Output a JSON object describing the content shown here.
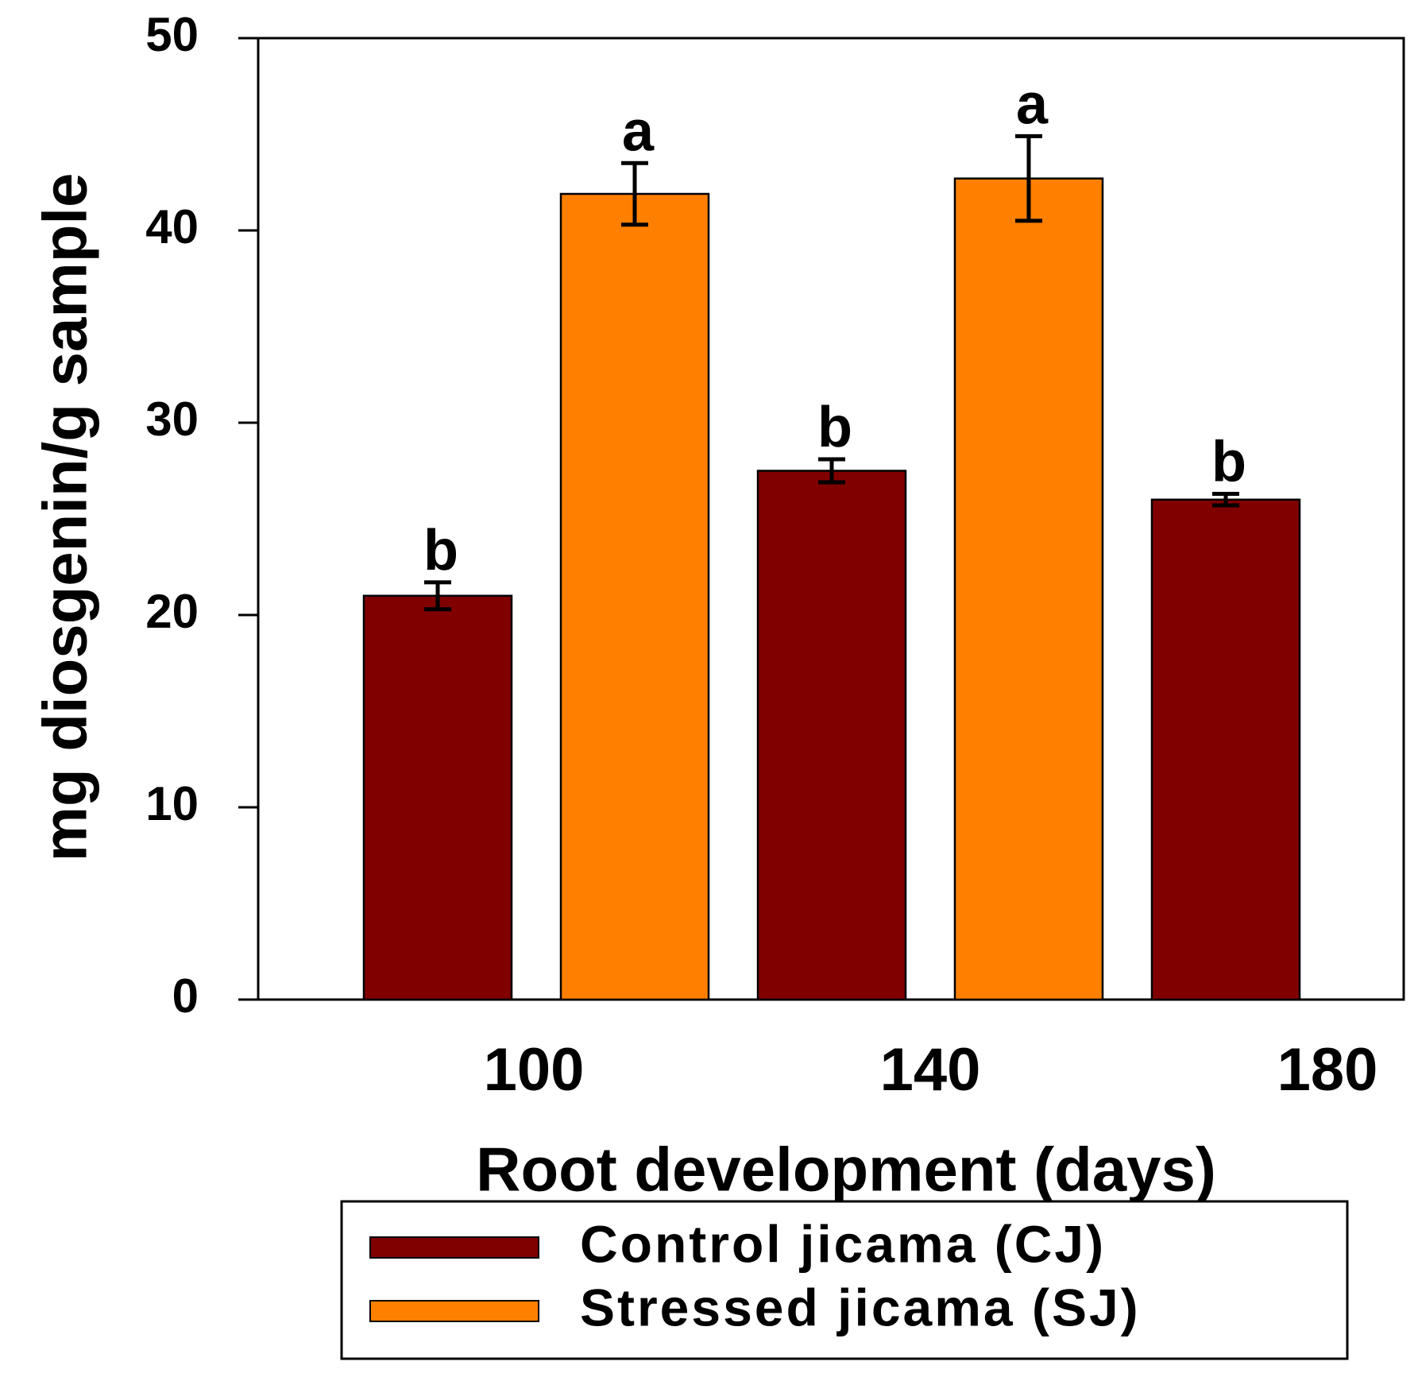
{
  "chart_data": {
    "type": "bar",
    "xlabel": "Root development (days)",
    "ylabel": "mg diosgenin/g sample",
    "ylim": [
      0,
      50
    ],
    "yticks": [
      "0",
      "10",
      "20",
      "30",
      "40",
      "50"
    ],
    "xticks": [
      "100",
      "140",
      "180"
    ],
    "grid": false,
    "legend_position": "bottom",
    "series": [
      {
        "name": "Control jicama (CJ)",
        "color": "#800000"
      },
      {
        "name": "Stressed jicama (SJ)",
        "color": "#ff8000"
      }
    ],
    "bars": [
      {
        "series": 0,
        "value": 21.0,
        "error": 0.7,
        "label": "b"
      },
      {
        "series": 1,
        "value": 41.9,
        "error": 1.6,
        "label": "a"
      },
      {
        "series": 0,
        "value": 27.5,
        "error": 0.6,
        "label": "b"
      },
      {
        "series": 1,
        "value": 42.7,
        "error": 2.2,
        "label": "a"
      },
      {
        "series": 0,
        "value": 26.0,
        "error": 0.3,
        "label": "b"
      }
    ]
  }
}
